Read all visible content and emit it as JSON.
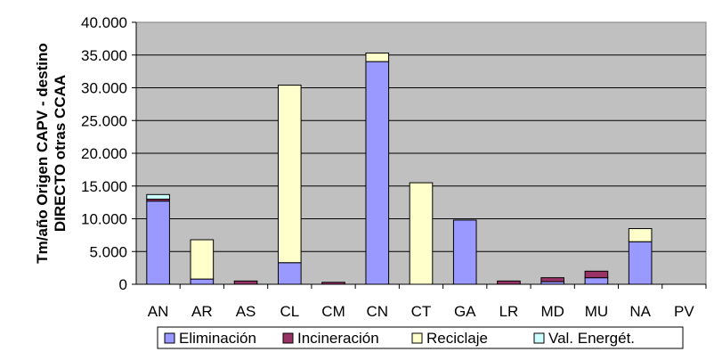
{
  "chart_data": {
    "type": "bar",
    "stacked": true,
    "title": "",
    "xlabel": "",
    "ylabel_lines": [
      "Tm/año Origen CAPV - destino",
      "DIRECTO otras CCAA"
    ],
    "ylim": [
      0,
      40000
    ],
    "y_ticks": [
      0,
      5000,
      10000,
      15000,
      20000,
      25000,
      30000,
      35000,
      40000
    ],
    "y_tick_labels": [
      "0",
      "5.000",
      "10.000",
      "15.000",
      "20.000",
      "25.000",
      "30.000",
      "35.000",
      "40.000"
    ],
    "grid": true,
    "legend_position": "bottom",
    "plot_background": "#c0c0c0",
    "categories": [
      "AN",
      "AR",
      "AS",
      "CL",
      "CM",
      "CN",
      "CT",
      "GA",
      "LR",
      "MD",
      "MU",
      "NA",
      "PV"
    ],
    "series": [
      {
        "name": "Eliminación",
        "color": "#9999ff",
        "values": [
          12700,
          800,
          0,
          3300,
          0,
          34000,
          0,
          9800,
          0,
          400,
          1000,
          6500,
          0
        ]
      },
      {
        "name": "Incineración",
        "color": "#993366",
        "values": [
          300,
          0,
          500,
          0,
          300,
          0,
          0,
          0,
          500,
          600,
          1000,
          0,
          0
        ]
      },
      {
        "name": "Reciclaje",
        "color": "#ffffcc",
        "values": [
          0,
          6000,
          0,
          27100,
          0,
          1300,
          15500,
          0,
          0,
          0,
          0,
          2000,
          0
        ]
      },
      {
        "name": "Val. Energét.",
        "color": "#ccffff",
        "values": [
          700,
          0,
          0,
          0,
          0,
          0,
          0,
          0,
          0,
          0,
          0,
          0,
          0
        ]
      }
    ]
  }
}
